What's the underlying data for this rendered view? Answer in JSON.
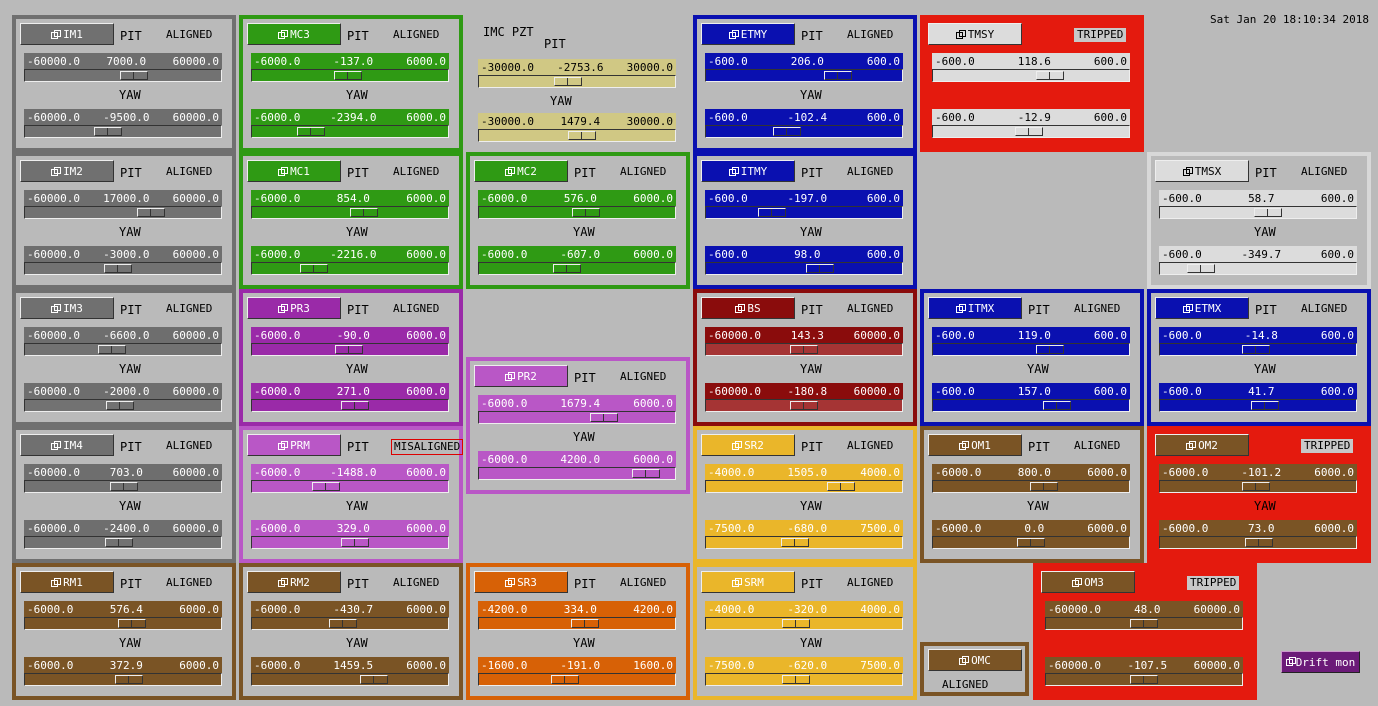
{
  "datetime": "Sat Jan 20 18:10:34 2018",
  "pit_label": "PIT",
  "yaw_label": "YAW",
  "drift_button": "Drift mon",
  "imc_pzt": {
    "title": "IMC PZT",
    "pit": {
      "min": "-30000.0",
      "val": "-2753.6",
      "max": "30000.0",
      "pos": 0.454
    },
    "yaw": {
      "min": "-30000.0",
      "val": "1479.4",
      "max": "30000.0",
      "pos": 0.525
    }
  },
  "omc": {
    "name": "OMC",
    "status": "ALIGNED"
  },
  "panels": [
    {
      "name": "IM1",
      "status": "ALIGNED",
      "p": {
        "min": "-60000.0",
        "val": "7000.0",
        "max": "60000.0",
        "pos": 0.558
      },
      "y": {
        "min": "-60000.0",
        "val": "-9500.0",
        "max": "60000.0",
        "pos": 0.421
      }
    },
    {
      "name": "MC3",
      "status": "ALIGNED",
      "p": {
        "min": "-6000.0",
        "val": "-137.0",
        "max": "6000.0",
        "pos": 0.489
      },
      "y": {
        "min": "-6000.0",
        "val": "-2394.0",
        "max": "6000.0",
        "pos": 0.3
      }
    },
    {
      "name": "ETMY",
      "status": "ALIGNED",
      "p": {
        "min": "-600.0",
        "val": "206.0",
        "max": "600.0",
        "pos": 0.672
      },
      "y": {
        "min": "-600.0",
        "val": "-102.4",
        "max": "600.0",
        "pos": 0.415
      }
    },
    {
      "name": "TMSY",
      "status": "TRIPPED",
      "p": {
        "min": "-600.0",
        "val": "118.6",
        "max": "600.0",
        "pos": 0.599
      },
      "y": {
        "min": "-600.0",
        "val": "-12.9",
        "max": "600.0",
        "pos": 0.489
      }
    },
    {
      "name": "IM2",
      "status": "ALIGNED",
      "p": {
        "min": "-60000.0",
        "val": "17000.0",
        "max": "60000.0",
        "pos": 0.642
      },
      "y": {
        "min": "-60000.0",
        "val": "-3000.0",
        "max": "60000.0",
        "pos": 0.475
      }
    },
    {
      "name": "MC1",
      "status": "ALIGNED",
      "p": {
        "min": "-6000.0",
        "val": "854.0",
        "max": "6000.0",
        "pos": 0.571
      },
      "y": {
        "min": "-6000.0",
        "val": "-2216.0",
        "max": "6000.0",
        "pos": 0.315
      }
    },
    {
      "name": "MC2",
      "status": "ALIGNED",
      "p": {
        "min": "-6000.0",
        "val": "576.0",
        "max": "6000.0",
        "pos": 0.548
      },
      "y": {
        "min": "-6000.0",
        "val": "-607.0",
        "max": "6000.0",
        "pos": 0.449
      }
    },
    {
      "name": "ITMY",
      "status": "ALIGNED",
      "p": {
        "min": "-600.0",
        "val": "-197.0",
        "max": "600.0",
        "pos": 0.336
      },
      "y": {
        "min": "-600.0",
        "val": "98.0",
        "max": "600.0",
        "pos": 0.582
      }
    },
    {
      "name": "TMSX",
      "status": "ALIGNED",
      "p": {
        "min": "-600.0",
        "val": "58.7",
        "max": "600.0",
        "pos": 0.549
      },
      "y": {
        "min": "-600.0",
        "val": "-349.7",
        "max": "600.0",
        "pos": 0.209
      }
    },
    {
      "name": "IM3",
      "status": "ALIGNED",
      "p": {
        "min": "-60000.0",
        "val": "-6600.0",
        "max": "60000.0",
        "pos": 0.445
      },
      "y": {
        "min": "-60000.0",
        "val": "-2000.0",
        "max": "60000.0",
        "pos": 0.483
      }
    },
    {
      "name": "PR3",
      "status": "ALIGNED",
      "p": {
        "min": "-6000.0",
        "val": "-90.0",
        "max": "6000.0",
        "pos": 0.493
      },
      "y": {
        "min": "-6000.0",
        "val": "271.0",
        "max": "6000.0",
        "pos": 0.523
      }
    },
    {
      "name": "BS",
      "status": "ALIGNED",
      "p": {
        "min": "-60000.0",
        "val": "143.3",
        "max": "60000.0",
        "pos": 0.501
      },
      "y": {
        "min": "-60000.0",
        "val": "-180.8",
        "max": "60000.0",
        "pos": 0.498
      }
    },
    {
      "name": "ITMX",
      "status": "ALIGNED",
      "p": {
        "min": "-600.0",
        "val": "119.0",
        "max": "600.0",
        "pos": 0.599
      },
      "y": {
        "min": "-600.0",
        "val": "157.0",
        "max": "600.0",
        "pos": 0.631
      }
    },
    {
      "name": "ETMX",
      "status": "ALIGNED",
      "p": {
        "min": "-600.0",
        "val": "-14.8",
        "max": "600.0",
        "pos": 0.488
      },
      "y": {
        "min": "-600.0",
        "val": "41.7",
        "max": "600.0",
        "pos": 0.535
      }
    },
    {
      "name": "PR2",
      "status": "ALIGNED",
      "p": {
        "min": "-6000.0",
        "val": "1679.4",
        "max": "6000.0",
        "pos": 0.64
      },
      "y": {
        "min": "-6000.0",
        "val": "4200.0",
        "max": "6000.0",
        "pos": 0.85
      }
    },
    {
      "name": "IM4",
      "status": "ALIGNED",
      "p": {
        "min": "-60000.0",
        "val": "703.0",
        "max": "60000.0",
        "pos": 0.506
      },
      "y": {
        "min": "-60000.0",
        "val": "-2400.0",
        "max": "60000.0",
        "pos": 0.48
      }
    },
    {
      "name": "PRM",
      "status": "MISALIGNED",
      "p": {
        "min": "-6000.0",
        "val": "-1488.0",
        "max": "6000.0",
        "pos": 0.376
      },
      "y": {
        "min": "-6000.0",
        "val": "329.0",
        "max": "6000.0",
        "pos": 0.527
      }
    },
    {
      "name": "SR2",
      "status": "ALIGNED",
      "p": {
        "min": "-4000.0",
        "val": "1505.0",
        "max": "4000.0",
        "pos": 0.688
      },
      "y": {
        "min": "-7500.0",
        "val": "-680.0",
        "max": "7500.0",
        "pos": 0.455
      }
    },
    {
      "name": "OM1",
      "status": "ALIGNED",
      "p": {
        "min": "-6000.0",
        "val": "800.0",
        "max": "6000.0",
        "pos": 0.567
      },
      "y": {
        "min": "-6000.0",
        "val": "0.0",
        "max": "6000.0",
        "pos": 0.5
      }
    },
    {
      "name": "OM2",
      "status": "TRIPPED",
      "p": {
        "min": "-6000.0",
        "val": "-101.2",
        "max": "6000.0",
        "pos": 0.492
      },
      "y": {
        "min": "-6000.0",
        "val": "73.0",
        "max": "6000.0",
        "pos": 0.506
      }
    },
    {
      "name": "RM1",
      "status": "ALIGNED",
      "p": {
        "min": "-6000.0",
        "val": "576.4",
        "max": "6000.0",
        "pos": 0.548
      },
      "y": {
        "min": "-6000.0",
        "val": "372.9",
        "max": "6000.0",
        "pos": 0.531
      }
    },
    {
      "name": "RM2",
      "status": "ALIGNED",
      "p": {
        "min": "-6000.0",
        "val": "-430.7",
        "max": "6000.0",
        "pos": 0.464
      },
      "y": {
        "min": "-6000.0",
        "val": "1459.5",
        "max": "6000.0",
        "pos": 0.622
      }
    },
    {
      "name": "SR3",
      "status": "ALIGNED",
      "p": {
        "min": "-4200.0",
        "val": "334.0",
        "max": "4200.0",
        "pos": 0.54
      },
      "y": {
        "min": "-1600.0",
        "val": "-191.0",
        "max": "1600.0",
        "pos": 0.44
      }
    },
    {
      "name": "SRM",
      "status": "ALIGNED",
      "p": {
        "min": "-4000.0",
        "val": "-320.0",
        "max": "4000.0",
        "pos": 0.46
      },
      "y": {
        "min": "-7500.0",
        "val": "-620.0",
        "max": "7500.0",
        "pos": 0.459
      }
    },
    {
      "name": "OM3",
      "status": "TRIPPED",
      "p": {
        "min": "-60000.0",
        "val": "48.0",
        "max": "60000.0",
        "pos": 0.5
      },
      "y": {
        "min": "-60000.0",
        "val": "-107.5",
        "max": "60000.0",
        "pos": 0.499
      }
    }
  ],
  "colors": {
    "gray": {
      "border": "#707070",
      "btn": "#707070",
      "row": "#6e6e6e",
      "slider": "#727272",
      "text": "#ffffff",
      "btntext": "#ffffff"
    },
    "green": {
      "border": "#2f9a14",
      "btn": "#2f9a14",
      "row": "#2f9a14",
      "slider": "#2f9a14",
      "text": "#ffffff",
      "btntext": "#ffffff"
    },
    "blue": {
      "border": "#0a10b0",
      "btn": "#0a10b0",
      "row": "#0a10b0",
      "slider": "#0a10b0",
      "text": "#ffffff",
      "btntext": "#ffffff"
    },
    "purple": {
      "border": "#9a2aa8",
      "btn": "#9a2aa8",
      "row": "#9a2aa8",
      "slider": "#9a2aa8",
      "text": "#ffffff",
      "btntext": "#ffffff"
    },
    "lilac": {
      "border": "#b957c6",
      "btn": "#b957c6",
      "row": "#b957c6",
      "slider": "#b957c6",
      "text": "#ffffff",
      "btntext": "#ffffff"
    },
    "darkred": {
      "border": "#8a0c0c",
      "btn": "#8a0c0c",
      "row": "#8a0c0c",
      "slider": "#a53434",
      "text": "#ffffff",
      "btntext": "#ffffff"
    },
    "brown": {
      "border": "#7a5425",
      "btn": "#7a5425",
      "row": "#7a5425",
      "slider": "#7a5425",
      "text": "#ffffff",
      "btntext": "#ffffff"
    },
    "orange": {
      "border": "#d76106",
      "btn": "#d76106",
      "row": "#d76106",
      "slider": "#d76106",
      "text": "#ffffff",
      "btntext": "#ffffff"
    },
    "gold": {
      "border": "#eab62a",
      "btn": "#eab62a",
      "row": "#eab62a",
      "slider": "#eab62a",
      "text": "#ffffff",
      "btntext": "#ffffff"
    },
    "khaki": {
      "border": "#d0c884",
      "btn": "#d0c884",
      "row": "#d0c884",
      "slider": "#d0c884",
      "text": "#000000",
      "btntext": "#000000"
    },
    "light": {
      "border": "#d8d8d8",
      "btn": "#dcdcdc",
      "row": "#dcdcdc",
      "slider": "#dcdcdc",
      "text": "#000000",
      "btntext": "#000000"
    },
    "tripped": "#e41a0e",
    "background": "#bababa"
  }
}
